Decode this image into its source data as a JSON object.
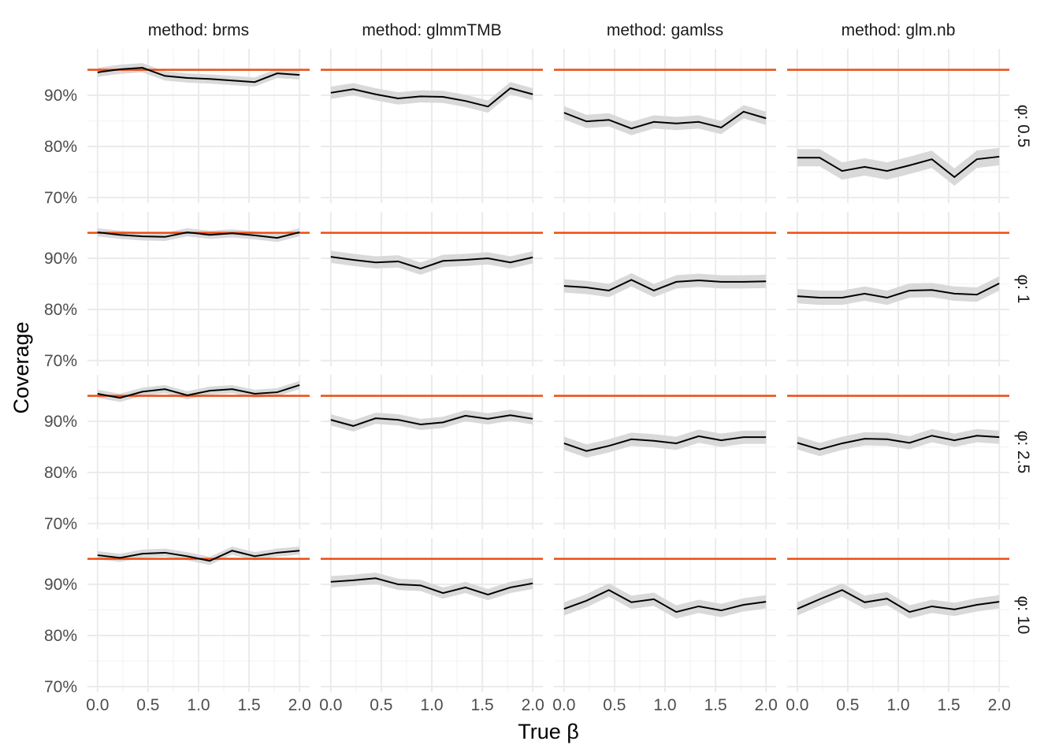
{
  "chart_data": {
    "type": "line",
    "xlabel": "True β",
    "ylabel": "Coverage",
    "columns": [
      "method: brms",
      "method: glmmTMB",
      "method: gamlss",
      "method: glm.nb"
    ],
    "rows": [
      "φ: 0.5",
      "φ: 1",
      "φ: 2.5",
      "φ: 10"
    ],
    "x": [
      0,
      0.222,
      0.444,
      0.667,
      0.889,
      1.111,
      1.333,
      1.556,
      1.778,
      2.0
    ],
    "xlim": [
      -0.1,
      2.1
    ],
    "xticks": [
      {
        "value": 0,
        "label": "0.0"
      },
      0.5,
      {
        "value": 1,
        "label": "1.0"
      },
      1.5,
      {
        "value": 2,
        "label": "2.0"
      }
    ],
    "ylim": [
      68.9,
      99.1
    ],
    "yticks": [
      {
        "value": 70,
        "label": "70%"
      },
      {
        "value": 80,
        "label": "80%"
      },
      {
        "value": 90,
        "label": "90%"
      }
    ],
    "reference": 95,
    "reference_color": "#ee4b12",
    "line_color": "#000000",
    "band_color": "#d9d9d9",
    "grid": true,
    "panels": [
      [
        {
          "values": [
            94.5,
            95.1,
            95.4,
            93.8,
            93.4,
            93.2,
            92.9,
            92.6,
            94.3,
            94.0
          ],
          "error": 0.9
        },
        {
          "values": [
            90.5,
            91.2,
            90.2,
            89.4,
            89.8,
            89.7,
            88.9,
            87.8,
            91.4,
            90.2
          ],
          "error": 1.2
        },
        {
          "values": [
            86.6,
            84.9,
            85.2,
            83.5,
            84.8,
            84.5,
            84.8,
            83.7,
            86.8,
            85.5
          ],
          "error": 1.3
        },
        {
          "values": [
            77.8,
            77.8,
            75.2,
            76.0,
            75.2,
            76.3,
            77.5,
            74.0,
            77.5,
            78.0
          ],
          "error": 1.7
        }
      ],
      [
        {
          "values": [
            95.1,
            94.6,
            94.3,
            94.2,
            95.1,
            94.6,
            94.9,
            94.5,
            94.0,
            95.1
          ],
          "error": 0.8
        },
        {
          "values": [
            90.3,
            89.7,
            89.2,
            89.4,
            88.0,
            89.5,
            89.7,
            90.0,
            89.2,
            90.2
          ],
          "error": 1.2
        },
        {
          "values": [
            84.6,
            84.3,
            83.7,
            85.8,
            83.7,
            85.4,
            85.7,
            85.4,
            85.4,
            85.5
          ],
          "error": 1.3
        },
        {
          "values": [
            82.6,
            82.3,
            82.3,
            83.1,
            82.3,
            83.7,
            83.8,
            83.1,
            82.9,
            85.1
          ],
          "error": 1.4
        }
      ],
      [
        {
          "values": [
            95.4,
            94.6,
            95.8,
            96.3,
            95.1,
            96.0,
            96.3,
            95.4,
            95.7,
            97.1
          ],
          "error": 0.8
        },
        {
          "values": [
            90.3,
            89.1,
            90.6,
            90.3,
            89.4,
            89.8,
            91.1,
            90.5,
            91.2,
            90.5
          ],
          "error": 1.1
        },
        {
          "values": [
            85.7,
            84.2,
            85.2,
            86.5,
            86.2,
            85.7,
            87.1,
            86.3,
            86.9,
            86.9
          ],
          "error": 1.3
        },
        {
          "values": [
            85.8,
            84.5,
            85.7,
            86.6,
            86.5,
            85.8,
            87.2,
            86.3,
            87.2,
            86.9
          ],
          "error": 1.3
        }
      ],
      [
        {
          "values": [
            95.7,
            95.2,
            96.0,
            96.2,
            95.5,
            94.6,
            96.6,
            95.5,
            96.2,
            96.6
          ],
          "error": 0.8
        },
        {
          "values": [
            90.5,
            90.8,
            91.2,
            90.0,
            89.8,
            88.3,
            89.4,
            88.0,
            89.4,
            90.2
          ],
          "error": 1.1
        },
        {
          "values": [
            85.2,
            86.8,
            88.9,
            86.5,
            87.1,
            84.6,
            85.7,
            84.9,
            86.0,
            86.6
          ],
          "error": 1.3
        },
        {
          "values": [
            85.2,
            87.1,
            88.9,
            86.5,
            87.2,
            84.6,
            85.7,
            85.1,
            86.0,
            86.6
          ],
          "error": 1.3
        }
      ]
    ]
  }
}
